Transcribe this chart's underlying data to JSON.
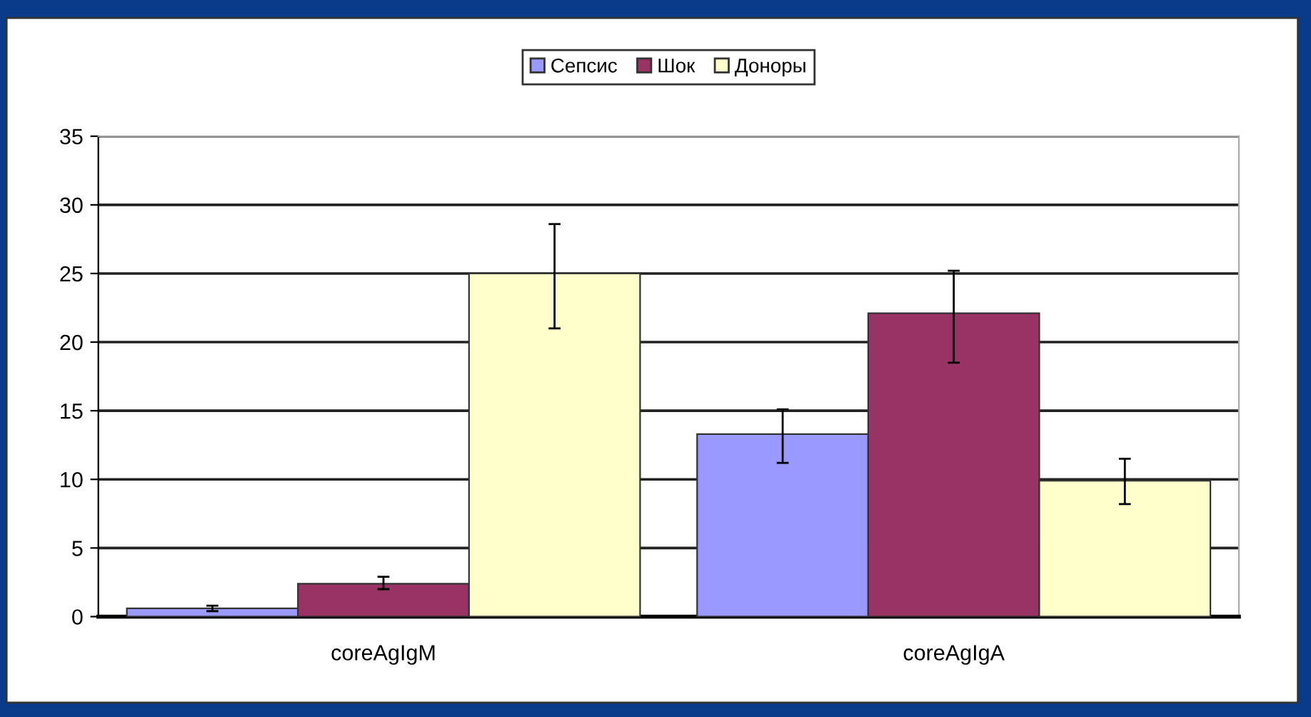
{
  "chart_data": {
    "type": "bar",
    "categories": [
      "coreAgIgM",
      "coreAgIgA"
    ],
    "series": [
      {
        "name": "Сепсис",
        "color": "#9999ff",
        "values": [
          0.6,
          13.3
        ],
        "errors": [
          0.2,
          [
            11.2,
            15.1
          ]
        ]
      },
      {
        "name": "Шок",
        "color": "#993366",
        "values": [
          2.4,
          22.1
        ],
        "errors": [
          [
            2.0,
            2.9
          ],
          [
            18.5,
            25.2
          ]
        ]
      },
      {
        "name": "Доноры",
        "color": "#ffffcc",
        "values": [
          25.0,
          9.9
        ],
        "errors": [
          [
            21.0,
            28.6
          ],
          [
            8.2,
            11.5
          ]
        ]
      }
    ],
    "ylim": [
      0,
      35
    ],
    "yticks": [
      0,
      5,
      10,
      15,
      20,
      25,
      30,
      35
    ],
    "grid": "y",
    "legend": "top"
  }
}
